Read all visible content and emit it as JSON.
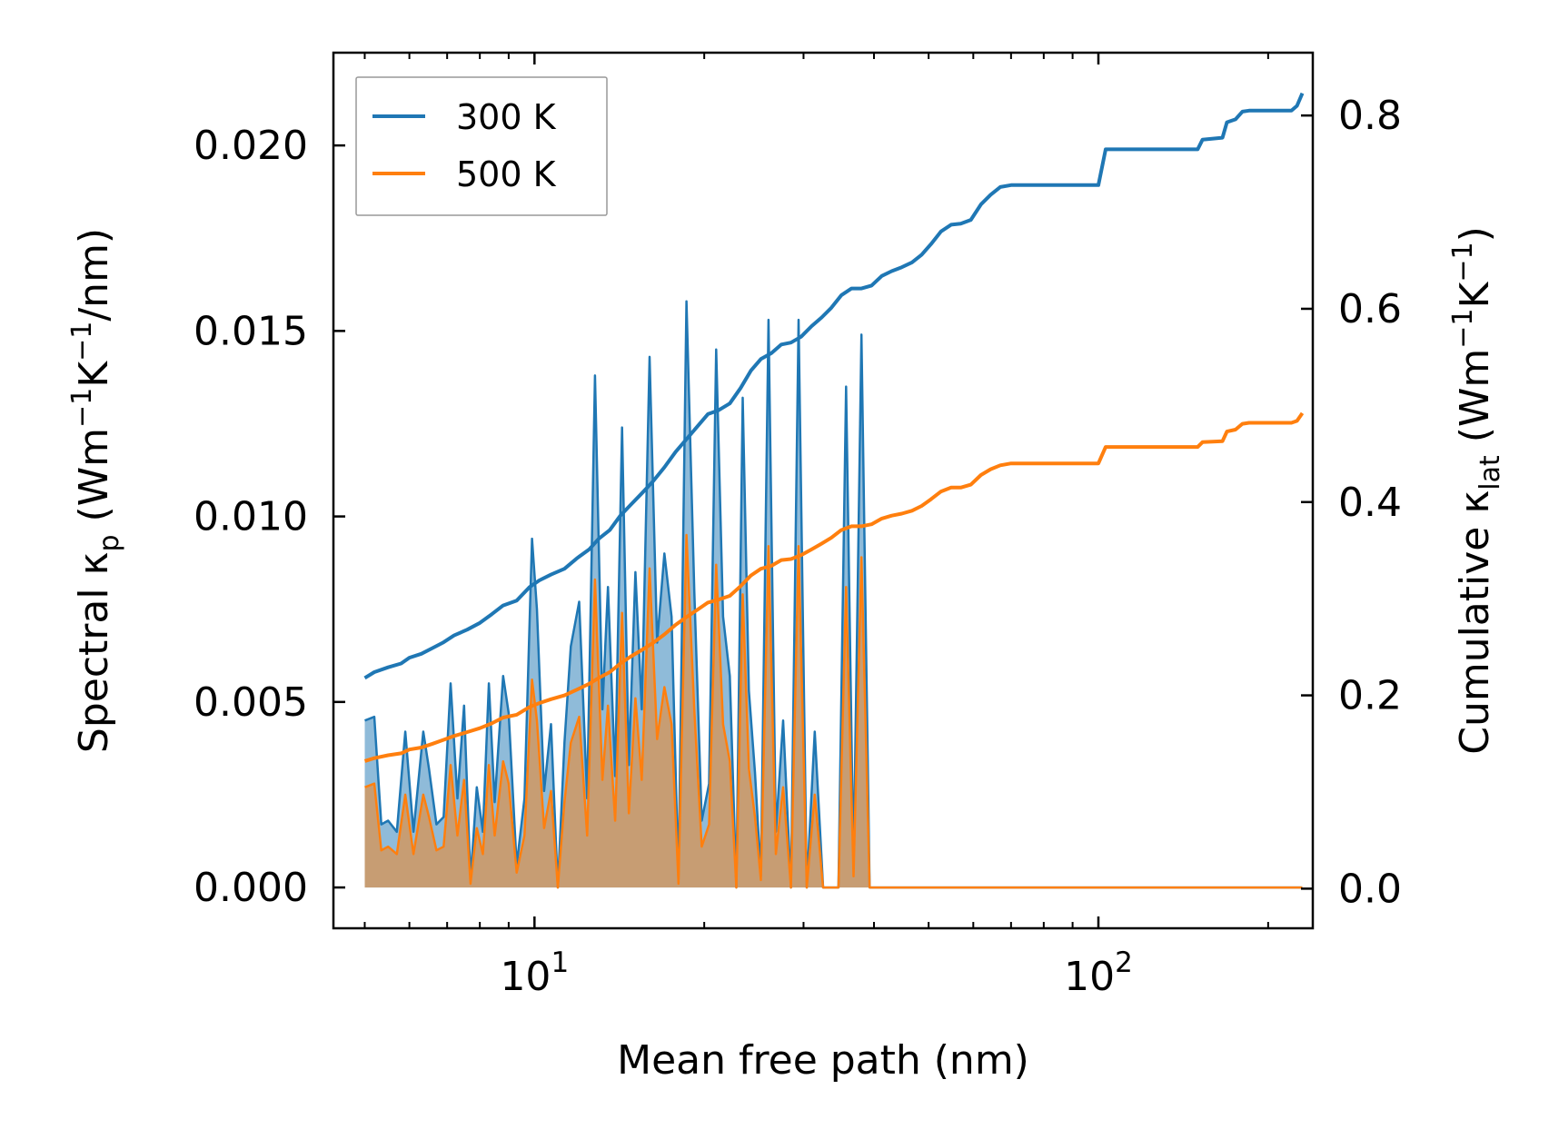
{
  "chart_data": {
    "type": "line",
    "x_scale": "log",
    "xlabel": "Mean free path (nm)",
    "ylabel_left": {
      "main": "Spectral κ",
      "sub": "p",
      "unit_prefix": " (Wm",
      "exp1": "−1",
      "mid": "K",
      "exp2": "−1",
      "tail": "/nm)"
    },
    "ylabel_right": {
      "main": "Cumulative κ",
      "sub": "lat",
      "unit_prefix": " (Wm",
      "exp1": "−1",
      "mid": "K",
      "exp2": "−1",
      "tail": ")"
    },
    "xlim": [
      4.4,
      240
    ],
    "ylim_left": [
      -0.0011,
      0.0225
    ],
    "ylim_right": [
      -0.041,
      0.865
    ],
    "x_ticks": [
      {
        "value": 10,
        "base": "10",
        "exp": "1"
      },
      {
        "value": 100,
        "base": "10",
        "exp": "2"
      }
    ],
    "y_ticks_left": [
      {
        "value": 0.0,
        "label": "0.000"
      },
      {
        "value": 0.005,
        "label": "0.005"
      },
      {
        "value": 0.01,
        "label": "0.010"
      },
      {
        "value": 0.015,
        "label": "0.015"
      },
      {
        "value": 0.02,
        "label": "0.020"
      }
    ],
    "y_ticks_right": [
      {
        "value": 0.0,
        "label": "0.0"
      },
      {
        "value": 0.2,
        "label": "0.2"
      },
      {
        "value": 0.4,
        "label": "0.4"
      },
      {
        "value": 0.6,
        "label": "0.6"
      },
      {
        "value": 0.8,
        "label": "0.8"
      }
    ],
    "legend": {
      "position": "top-left",
      "entries": [
        {
          "name": "300 K",
          "color": "#1f77b4"
        },
        {
          "name": "500 K",
          "color": "#ff7f0e"
        }
      ]
    },
    "series": [
      {
        "name": "300 K",
        "color": "#1f77b4",
        "spectral": {
          "x": [
            5.0,
            5.2,
            5.35,
            5.5,
            5.7,
            5.9,
            6.1,
            6.35,
            6.5,
            6.7,
            6.9,
            7.1,
            7.3,
            7.5,
            7.7,
            7.9,
            8.1,
            8.3,
            8.5,
            8.8,
            9.0,
            9.3,
            9.6,
            9.9,
            10.1,
            10.4,
            10.7,
            11.0,
            11.3,
            11.6,
            12.0,
            12.4,
            12.8,
            13.2,
            13.5,
            13.9,
            14.3,
            14.7,
            15.1,
            15.5,
            16.0,
            16.5,
            17.0,
            17.5,
            18.0,
            18.6,
            19.2,
            19.8,
            20.4,
            21.0,
            21.6,
            22.2,
            22.8,
            23.4,
            24.0,
            24.6,
            25.2,
            26.0,
            26.8,
            27.6,
            28.5,
            29.4,
            30.4,
            31.4,
            32.5,
            33.6,
            34.6,
            35.7,
            36.8,
            38.0,
            39.3,
            40.6,
            42.0,
            43.5,
            45.0,
            46.5,
            48.1,
            49.8,
            51.5,
            53.3,
            55.0,
            57.0,
            59.0,
            61.0,
            63.5,
            65.8,
            68.0,
            70.0,
            72.0,
            74.0,
            100.0,
            102.5,
            105.5,
            108.5,
            111.0,
            148.0,
            151.0,
            155.0,
            160.0,
            163.0,
            166.0,
            170.0,
            175.0,
            178.0,
            181.0,
            185.0,
            222.0,
            224.5,
            227.0,
            230.0
          ],
          "y": [
            0.0045,
            0.0046,
            0.0017,
            0.0018,
            0.0015,
            0.0042,
            0.0015,
            0.0042,
            0.0032,
            0.0017,
            0.0019,
            0.0055,
            0.0024,
            0.0049,
            0.0002,
            0.0027,
            0.0015,
            0.0055,
            0.0023,
            0.0057,
            0.0047,
            0.0006,
            0.0024,
            0.0094,
            0.0075,
            0.0026,
            0.0044,
            0.0,
            0.0039,
            0.0065,
            0.0077,
            0.0024,
            0.0138,
            0.0048,
            0.0081,
            0.003,
            0.0124,
            0.0033,
            0.0085,
            0.0048,
            0.0143,
            0.0066,
            0.009,
            0.0073,
            0.0002,
            0.0158,
            0.008,
            0.0018,
            0.0028,
            0.0145,
            0.0073,
            0.0057,
            0.0,
            0.0132,
            0.0053,
            0.0031,
            0.0003,
            0.0153,
            0.0015,
            0.0045,
            0.0,
            0.0153,
            0.0,
            0.0042,
            0.0,
            0.0,
            0.0,
            0.0135,
            0.0005,
            0.0149,
            0.0,
            0.0,
            0.0,
            0.0,
            0.0,
            0.0,
            0.0,
            0.0,
            0.0,
            0.0,
            0.0,
            0.0,
            0.0,
            0.0,
            0.0,
            0.0,
            0.0,
            0.0,
            0.0,
            0.0,
            0.0,
            0.0,
            0.0,
            0.0,
            0.0,
            0.0,
            0.0,
            0.0,
            0.0,
            0.0,
            0.0,
            0.0,
            0.0,
            0.0,
            0.0,
            0.0,
            0.0,
            0.0,
            0.0,
            0.0
          ]
        },
        "cumulative": {
          "x": [
            5.0,
            5.2,
            5.5,
            5.8,
            6.0,
            6.3,
            6.6,
            6.9,
            7.2,
            7.6,
            8.0,
            8.4,
            8.8,
            9.3,
            9.8,
            10.2,
            10.7,
            11.3,
            11.9,
            12.5,
            13.0,
            13.6,
            14.2,
            14.8,
            15.5,
            16.2,
            17.0,
            17.8,
            18.6,
            19.5,
            20.3,
            21.2,
            22.2,
            23.2,
            24.2,
            25.2,
            26.3,
            27.4,
            28.5,
            29.7,
            31.0,
            32.3,
            33.6,
            35.0,
            36.5,
            38.0,
            39.6,
            41.3,
            43.0,
            44.8,
            46.7,
            48.6,
            50.5,
            52.6,
            54.8,
            57.0,
            59.4,
            61.9,
            64.4,
            67.0,
            70.0,
            75.0,
            100.0,
            103.0,
            106.0,
            150.0,
            153.0,
            166.0,
            169.0,
            175.0,
            180.0,
            185.0,
            200.0,
            220.0,
            225.0,
            230.0
          ],
          "y": [
            0.218,
            0.224,
            0.229,
            0.233,
            0.239,
            0.243,
            0.249,
            0.255,
            0.262,
            0.268,
            0.275,
            0.284,
            0.293,
            0.298,
            0.312,
            0.319,
            0.325,
            0.331,
            0.342,
            0.351,
            0.362,
            0.371,
            0.386,
            0.397,
            0.409,
            0.421,
            0.436,
            0.452,
            0.465,
            0.479,
            0.491,
            0.495,
            0.502,
            0.518,
            0.536,
            0.548,
            0.554,
            0.563,
            0.565,
            0.571,
            0.582,
            0.591,
            0.601,
            0.614,
            0.621,
            0.621,
            0.624,
            0.634,
            0.639,
            0.643,
            0.648,
            0.656,
            0.667,
            0.68,
            0.687,
            0.688,
            0.692,
            0.708,
            0.718,
            0.726,
            0.728,
            0.728,
            0.728,
            0.765,
            0.765,
            0.765,
            0.775,
            0.777,
            0.793,
            0.796,
            0.804,
            0.805,
            0.805,
            0.805,
            0.81,
            0.823
          ]
        }
      },
      {
        "name": "500 K",
        "color": "#ff7f0e",
        "spectral": {
          "x": [
            5.0,
            5.2,
            5.35,
            5.5,
            5.7,
            5.9,
            6.1,
            6.35,
            6.5,
            6.7,
            6.9,
            7.1,
            7.3,
            7.5,
            7.7,
            7.9,
            8.1,
            8.3,
            8.5,
            8.8,
            9.0,
            9.3,
            9.6,
            9.9,
            10.1,
            10.4,
            10.7,
            11.0,
            11.3,
            11.6,
            12.0,
            12.4,
            12.8,
            13.2,
            13.5,
            13.9,
            14.3,
            14.7,
            15.1,
            15.5,
            16.0,
            16.5,
            17.0,
            17.5,
            18.0,
            18.6,
            19.2,
            19.8,
            20.4,
            21.0,
            21.6,
            22.2,
            22.8,
            23.4,
            24.0,
            24.6,
            25.2,
            26.0,
            26.8,
            27.6,
            28.5,
            29.4,
            30.4,
            31.4,
            32.5,
            33.6,
            34.6,
            35.7,
            36.8,
            38.0,
            39.3,
            40.6,
            42.0,
            43.5,
            45.0,
            46.5,
            48.1,
            49.8,
            51.5,
            53.3,
            55.0,
            57.0,
            59.0,
            61.0,
            63.5,
            65.8,
            68.0,
            70.0,
            72.0,
            74.0,
            100.0,
            102.5,
            105.5,
            108.5,
            111.0,
            148.0,
            151.0,
            155.0,
            160.0,
            163.0,
            166.0,
            170.0,
            175.0,
            178.0,
            181.0,
            185.0,
            222.0,
            224.5,
            227.0,
            230.0
          ],
          "y": [
            0.0027,
            0.0028,
            0.001,
            0.0011,
            0.0009,
            0.0025,
            0.0009,
            0.0025,
            0.0019,
            0.001,
            0.0011,
            0.0033,
            0.0014,
            0.0029,
            0.0001,
            0.0016,
            0.0009,
            0.0033,
            0.0014,
            0.0034,
            0.0028,
            0.0004,
            0.0014,
            0.0056,
            0.0045,
            0.0016,
            0.0026,
            0.0,
            0.0023,
            0.0039,
            0.0046,
            0.0014,
            0.0083,
            0.0029,
            0.0049,
            0.0018,
            0.0074,
            0.002,
            0.0051,
            0.0029,
            0.0086,
            0.004,
            0.0054,
            0.0044,
            0.0001,
            0.0095,
            0.0048,
            0.0011,
            0.0017,
            0.0087,
            0.0044,
            0.0034,
            0.0,
            0.0079,
            0.0032,
            0.0019,
            0.0002,
            0.0092,
            0.0009,
            0.0027,
            0.0,
            0.0092,
            0.0,
            0.0025,
            0.0,
            0.0,
            0.0,
            0.0081,
            0.0003,
            0.0089,
            0.0,
            0.0,
            0.0,
            0.0,
            0.0,
            0.0,
            0.0,
            0.0,
            0.0,
            0.0,
            0.0,
            0.0,
            0.0,
            0.0,
            0.0,
            0.0,
            0.0,
            0.0,
            0.0,
            0.0,
            0.0,
            0.0,
            0.0,
            0.0,
            0.0,
            0.0,
            0.0,
            0.0,
            0.0,
            0.0,
            0.0,
            0.0,
            0.0,
            0.0,
            0.0,
            0.0,
            0.0,
            0.0,
            0.0,
            0.0
          ]
        },
        "cumulative": {
          "x": [
            5.0,
            5.2,
            5.5,
            5.8,
            6.0,
            6.3,
            6.6,
            6.9,
            7.2,
            7.6,
            8.0,
            8.4,
            8.8,
            9.3,
            9.8,
            10.2,
            10.7,
            11.3,
            11.9,
            12.5,
            13.0,
            13.6,
            14.2,
            14.8,
            15.5,
            16.2,
            17.0,
            17.8,
            18.6,
            19.5,
            20.3,
            21.2,
            22.2,
            23.2,
            24.2,
            25.2,
            26.3,
            27.4,
            28.5,
            29.7,
            31.0,
            32.3,
            33.6,
            35.0,
            36.5,
            38.0,
            39.6,
            41.3,
            43.0,
            44.8,
            46.7,
            48.6,
            50.5,
            52.6,
            54.8,
            57.0,
            59.4,
            61.9,
            64.4,
            67.0,
            70.0,
            75.0,
            100.0,
            103.0,
            106.0,
            150.0,
            153.0,
            166.0,
            169.0,
            175.0,
            180.0,
            185.0,
            200.0,
            220.0,
            225.0,
            230.0
          ],
          "y": [
            0.132,
            0.135,
            0.138,
            0.14,
            0.144,
            0.146,
            0.15,
            0.154,
            0.158,
            0.162,
            0.166,
            0.171,
            0.177,
            0.18,
            0.188,
            0.192,
            0.196,
            0.2,
            0.206,
            0.212,
            0.218,
            0.224,
            0.233,
            0.24,
            0.247,
            0.254,
            0.263,
            0.273,
            0.281,
            0.289,
            0.296,
            0.299,
            0.303,
            0.313,
            0.324,
            0.331,
            0.334,
            0.34,
            0.341,
            0.345,
            0.351,
            0.357,
            0.363,
            0.371,
            0.375,
            0.375,
            0.377,
            0.383,
            0.386,
            0.388,
            0.391,
            0.396,
            0.403,
            0.411,
            0.415,
            0.415,
            0.418,
            0.428,
            0.434,
            0.438,
            0.44,
            0.44,
            0.44,
            0.457,
            0.457,
            0.457,
            0.462,
            0.463,
            0.473,
            0.475,
            0.481,
            0.482,
            0.482,
            0.482,
            0.484,
            0.492
          ]
        }
      }
    ]
  }
}
